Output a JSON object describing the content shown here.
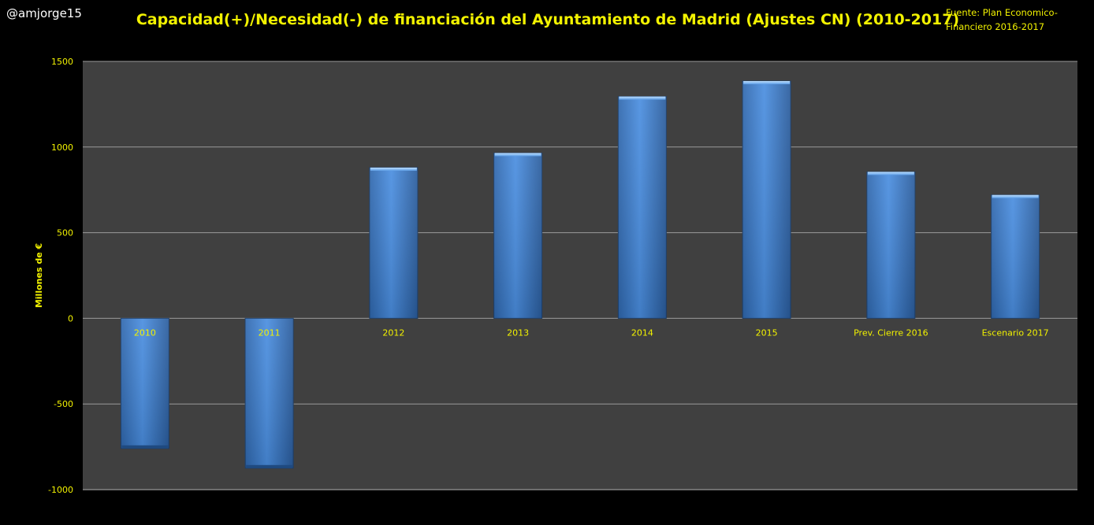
{
  "header": {
    "handle": "@amjorge15",
    "source_line1": "Fuente: Plan Economico-",
    "source_line2": "Financiero 2016-2017"
  },
  "colors": {
    "background": "#000000",
    "plot_area": "#404040",
    "gridline": "#9a9a9a",
    "bar": "#3a80d2",
    "title": "#f2f200",
    "axis_text": "#f2f200",
    "handle": "#ffffff"
  },
  "chart_data": {
    "type": "bar",
    "title": "Capacidad(+)/Necesidad(-) de financiación del Ayuntamiento de Madrid (Ajustes CN) (2010-2017)",
    "xlabel": "",
    "ylabel": "Millones de €",
    "ylim": [
      -1000,
      1500
    ],
    "yticks": [
      -1000,
      -500,
      0,
      500,
      1000,
      1500
    ],
    "grid": true,
    "legend": "none",
    "categories": [
      "2010",
      "2011",
      "2012",
      "2013",
      "2014",
      "2015",
      "Prev. Cierre 2016",
      "Escenario 2017"
    ],
    "values": [
      -760,
      -875,
      880,
      965,
      1295,
      1385,
      855,
      720
    ]
  }
}
